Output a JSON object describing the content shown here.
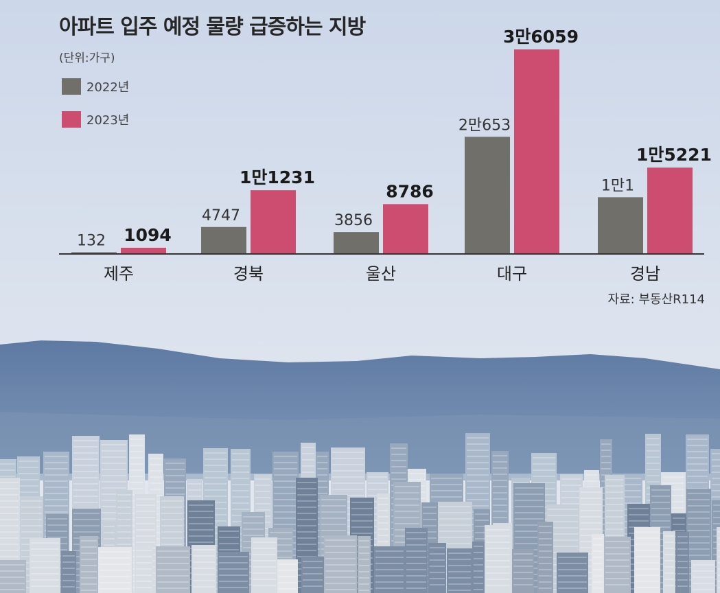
{
  "title": "아파트 입주 예정 물량 급증하는 지방",
  "unit": "(단위:가구)",
  "source": "자료: 부동산R114",
  "colors": {
    "series_2022": "#716f6a",
    "series_2023": "#cc4d70",
    "axis": "#333333"
  },
  "chart_data": {
    "type": "bar",
    "title": "아파트 입주 예정 물량 급증하는 지방",
    "xlabel": "",
    "ylabel": "",
    "ylim": [
      0,
      36059
    ],
    "grid": false,
    "legend_position": "top-left",
    "categories": [
      "제주",
      "경북",
      "울산",
      "대구",
      "경남"
    ],
    "series": [
      {
        "name": "2022년",
        "values": [
          132,
          4747,
          3856,
          20653,
          10001
        ]
      },
      {
        "name": "2023년",
        "values": [
          1094,
          11231,
          8786,
          36059,
          15221
        ]
      }
    ],
    "data_labels": [
      [
        "132",
        "4747",
        "3856",
        "2만653",
        "1만1"
      ],
      [
        "1094",
        "1만1231",
        "8786",
        "3만6059",
        "1만5221"
      ]
    ]
  }
}
